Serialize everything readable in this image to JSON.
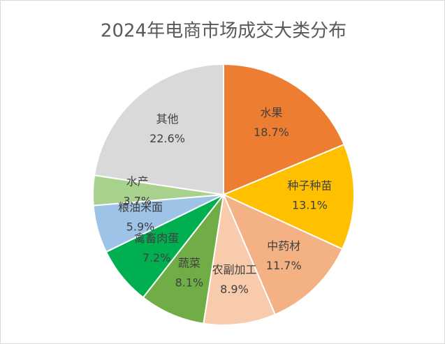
{
  "chart_data": {
    "type": "pie",
    "title": "2024年电商市场成交大类分布",
    "categories": [
      "水果",
      "种子种苗",
      "中药材",
      "农副加工",
      "蔬菜",
      "禽畜肉蛋",
      "粮油米面",
      "水产",
      "其他"
    ],
    "values": [
      18.7,
      13.1,
      11.7,
      8.9,
      8.1,
      7.2,
      5.9,
      3.7,
      22.6
    ],
    "value_labels": [
      "18.7%",
      "13.1%",
      "11.7%",
      "8.9%",
      "8.1%",
      "7.2%",
      "5.9%",
      "3.7%",
      "22.6%"
    ],
    "colors": [
      "#ED7D31",
      "#FFC000",
      "#F4B183",
      "#F8CBAD",
      "#70AD47",
      "#00B050",
      "#9DC3E6",
      "#A9D18E",
      "#D9D9D9"
    ]
  }
}
